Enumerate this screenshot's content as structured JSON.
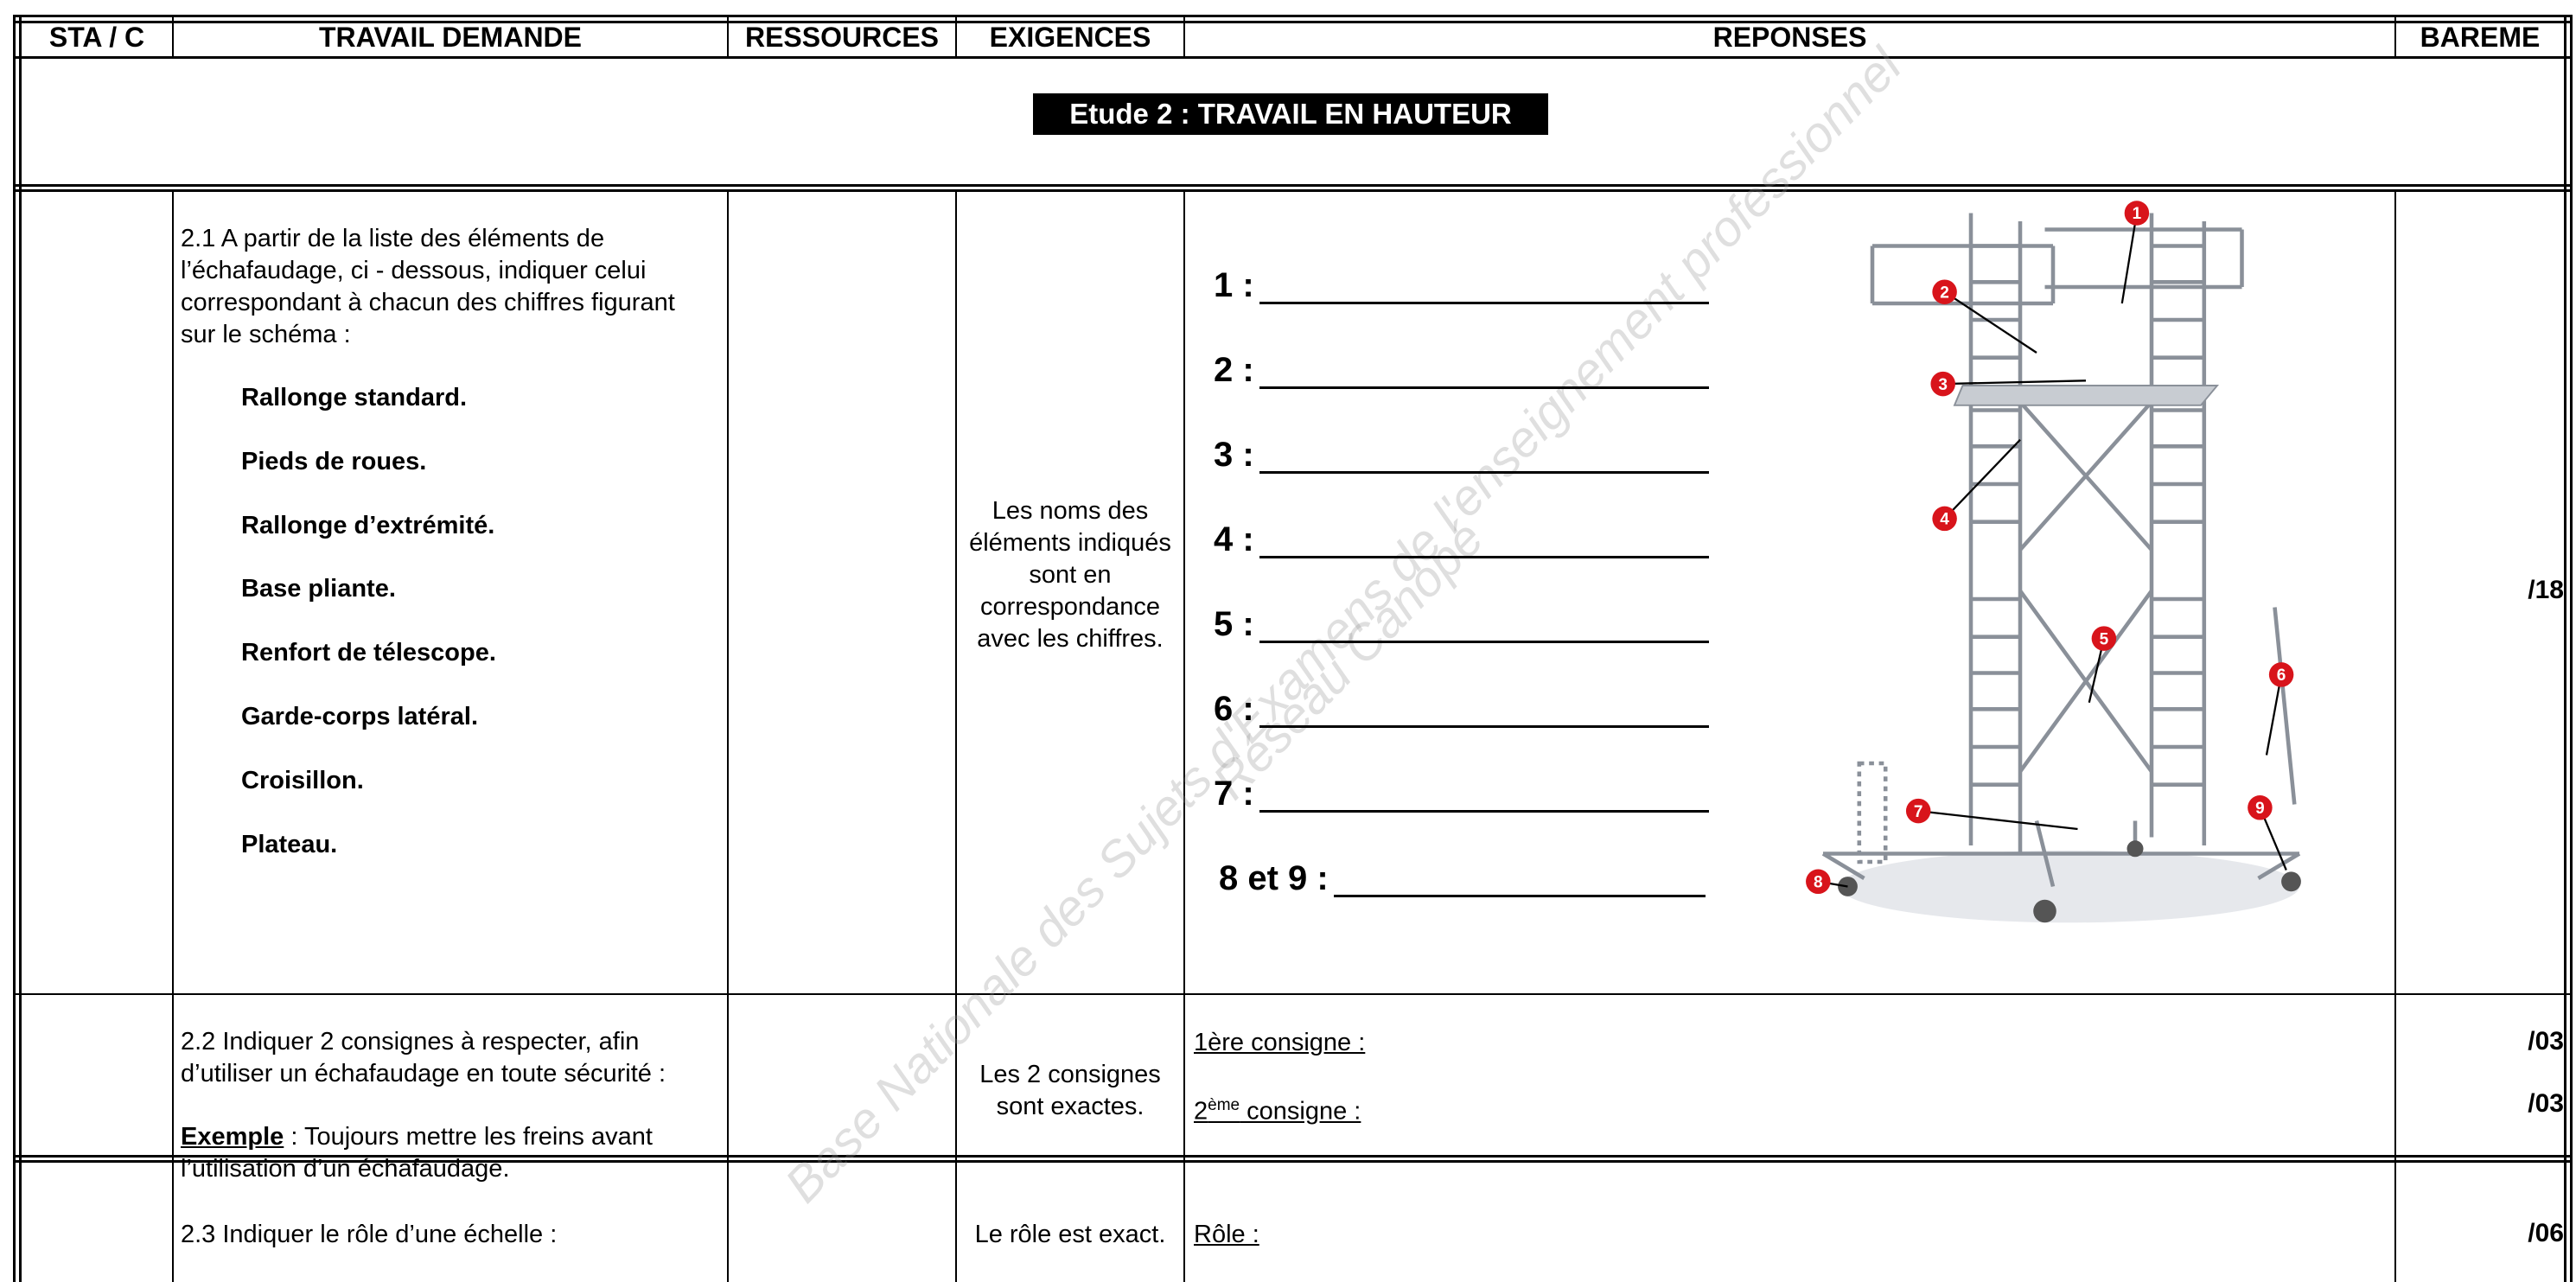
{
  "header": {
    "columns": [
      "STA / C",
      "TRAVAIL DEMANDE",
      "RESSOURCES",
      "EXIGENCES",
      "REPONSES",
      "BAREME"
    ]
  },
  "section_title": "Etude 2 : TRAVAIL EN HAUTEUR",
  "watermark": {
    "line1": "Base Nationale des Sujets d'Examens de l'enseignement professionnel",
    "line2": "Réseau Canopé"
  },
  "questions": [
    {
      "task": "2.1 A partir de la liste des éléments de l’échafaudage, ci - dessous, indiquer celui correspondant à chacun des chiffres figurant sur le schéma :",
      "items": [
        "Rallonge standard.",
        "Pieds de roues.",
        "Rallonge d’extrémité.",
        "Base pliante.",
        "Renfort de télescope.",
        "Garde-corps latéral.",
        "Croisillon.",
        "Plateau."
      ],
      "exigence": "Les noms des éléments indiqués sont en correspondance avec les chiffres.",
      "answers": [
        "1 :",
        "2 :",
        "3 :",
        "4 :",
        "5 :",
        "6 :",
        "7 :",
        "8 et 9 :"
      ],
      "diagram_labels": [
        "1",
        "2",
        "3",
        "4",
        "5",
        "6",
        "7",
        "8",
        "9"
      ],
      "bareme": "/18"
    },
    {
      "task": "2.2 Indiquer 2 consignes à respecter, afin d’utiliser un échafaudage en toute sécurité :",
      "example": {
        "label": "Exemple",
        "text": " : Toujours mettre les freins avant l’utilisation d’un échafaudage."
      },
      "exigence": "Les 2 consignes sont exactes.",
      "answers": [
        {
          "text": "1ère consigne :"
        },
        {
          "pre": "2",
          "sup": "ème",
          "text": " consigne :"
        }
      ],
      "bareme": [
        "/03",
        "/03"
      ]
    },
    {
      "task": "2.3 Indiquer le rôle d’une échelle :",
      "exigence": "Le rôle est exact.",
      "answer": "Rôle :",
      "bareme": "/06"
    }
  ]
}
